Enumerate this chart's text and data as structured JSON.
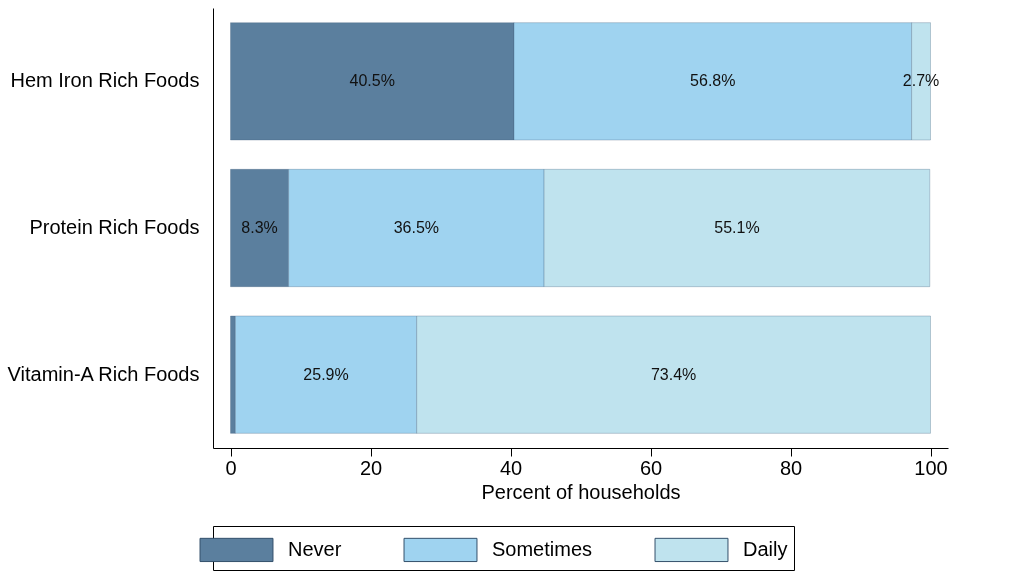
{
  "chart_data": {
    "type": "bar",
    "orientation": "horizontal",
    "stacked": true,
    "categories": [
      "Hem Iron Rich Foods",
      "Protein Rich Foods",
      "Vitamin-A Rich Foods"
    ],
    "series": [
      {
        "name": "Never",
        "color": "#5b7f9e",
        "values": [
          40.5,
          8.3,
          0.7
        ],
        "value_labels": [
          "40.5%",
          "8.3%",
          null
        ]
      },
      {
        "name": "Sometimes",
        "color": "#9fd3f0",
        "values": [
          56.8,
          36.5,
          25.9
        ],
        "value_labels": [
          "56.8%",
          "36.5%",
          "25.9%"
        ]
      },
      {
        "name": "Daily",
        "color": "#bfe3ee",
        "values": [
          2.7,
          55.1,
          73.4
        ],
        "value_labels": [
          "2.7%",
          "55.1%",
          "73.4%"
        ]
      }
    ],
    "xlabel": "Percent of households",
    "xlim": [
      -2.5,
      102.5
    ],
    "xticks": [
      0,
      20,
      40,
      60,
      80,
      100
    ],
    "grid": false,
    "legend": "bottom"
  }
}
